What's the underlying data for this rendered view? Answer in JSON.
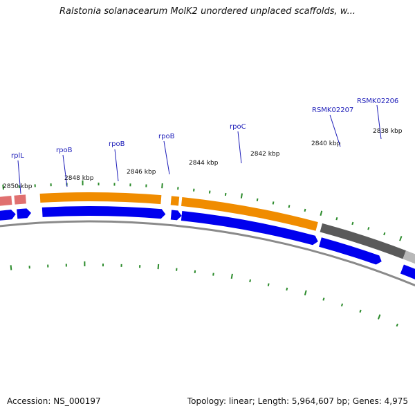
{
  "title": "Ralstonia solanacearum MolK2 unordered unplaced scaffolds, w...",
  "footer": {
    "accession": "Accession: NS_000197",
    "summary": "Topology: linear; Length: 5,964,607 bp; Genes: 4,975"
  },
  "colors": {
    "backbone": "#8a8a8a",
    "tick": "#2a8a2a",
    "cds": "#0000ee",
    "rna": "#f08c00",
    "pseudo": "#e07070",
    "hypothetical": "#5a5a5a",
    "label": "#1a1ab8"
  },
  "map": {
    "coordinate_labels": [
      "2850 kbp",
      "2848 kbp",
      "2846 kbp",
      "2844 kbp",
      "2842 kbp",
      "2840 kbp",
      "2838 kbp"
    ],
    "gene_labels": [
      "rplL",
      "rpoB",
      "rpoB",
      "rpoB",
      "rpoC",
      "RSMK02207",
      "RSMK02206"
    ]
  }
}
